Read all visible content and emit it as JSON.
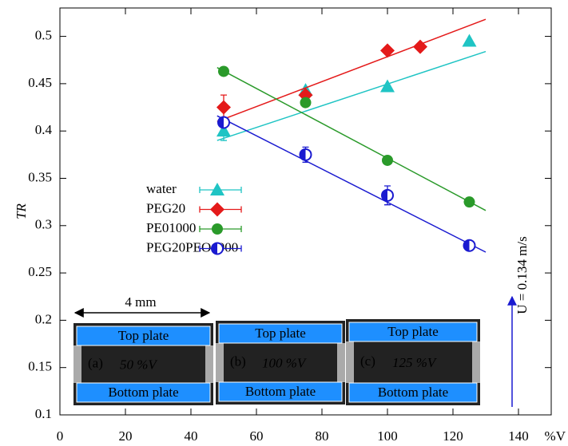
{
  "chart_data": {
    "type": "scatter",
    "x_label": "%V",
    "y_label": "TR",
    "xlim": [
      0,
      150
    ],
    "ylim": [
      0.1,
      0.53
    ],
    "xticks": [
      0,
      20,
      40,
      60,
      80,
      100,
      120,
      140
    ],
    "yticks": [
      0.1,
      0.15,
      0.2,
      0.25,
      0.3,
      0.35,
      0.4,
      0.45,
      0.5
    ],
    "series": [
      {
        "name": "water",
        "color": "#1fc4c4",
        "marker": "triangle",
        "x": [
          50,
          75,
          100,
          125
        ],
        "values": [
          0.4,
          0.443,
          0.447,
          0.495
        ],
        "errors": [
          0.01,
          null,
          null,
          null
        ],
        "fit_x": [
          48,
          130
        ],
        "fit_y": [
          0.39,
          0.484
        ]
      },
      {
        "name": "PEG20",
        "color": "#e41a1a",
        "marker": "diamond",
        "x": [
          50,
          75,
          100,
          110
        ],
        "values": [
          0.425,
          0.438,
          0.485,
          0.489
        ],
        "errors": [
          0.013,
          null,
          null,
          null
        ],
        "fit_x": [
          48,
          130
        ],
        "fit_y": [
          0.41,
          0.518
        ]
      },
      {
        "name": "PE01000",
        "color": "#2a9a2a",
        "marker": "circle",
        "x": [
          50,
          75,
          100,
          125
        ],
        "values": [
          0.463,
          0.43,
          0.369,
          0.325
        ],
        "errors": [
          null,
          null,
          null,
          null
        ],
        "fit_x": [
          48,
          130
        ],
        "fit_y": [
          0.467,
          0.316
        ]
      },
      {
        "name": "PEG20PEO1000",
        "color": "#1a1ad0",
        "marker": "half-circle",
        "x": [
          50,
          75,
          100,
          125
        ],
        "values": [
          0.409,
          0.375,
          0.332,
          0.279
        ],
        "errors": [
          null,
          0.008,
          0.01,
          null
        ],
        "fit_x": [
          48,
          130
        ],
        "fit_y": [
          0.416,
          0.272
        ]
      }
    ],
    "annotations": {
      "scale": "4 mm",
      "velocity": "U = 0.134 m/s"
    },
    "insets": [
      {
        "tag": "(a)",
        "fraction": "50 %V",
        "top": "Top plate",
        "bottom": "Bottom plate"
      },
      {
        "tag": "(b)",
        "fraction": "100 %V",
        "top": "Top plate",
        "bottom": "Bottom plate"
      },
      {
        "tag": "(c)",
        "fraction": "125 %V",
        "top": "Top plate",
        "bottom": "Bottom plate"
      }
    ]
  }
}
